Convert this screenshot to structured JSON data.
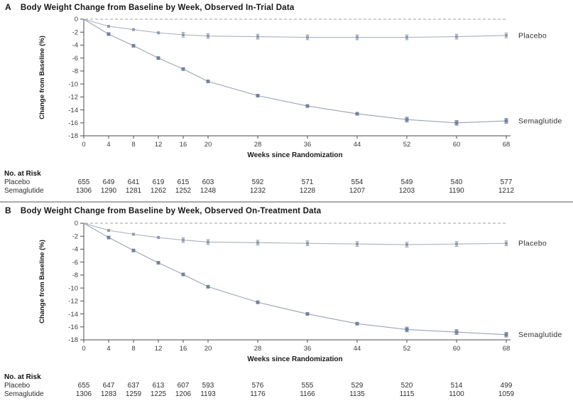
{
  "figure_label": "Body weight change figure, two panels",
  "colors": {
    "placebo_line": "#a8b0bd",
    "placebo_marker": "#8e9bae",
    "semaglutide_line": "#9aa4b6",
    "semaglutide_marker": "#73839f",
    "zero_line": "#9aa0a6",
    "axis": "#4d4d4d",
    "tick_text": "#3c3c3c",
    "divider": "#ababab"
  },
  "chart_data": [
    {
      "type": "line",
      "panel_letter": "A",
      "title": "Body Weight Change from Baseline by Week, Observed In-Trial Data",
      "xlabel": "Weeks since Randomization",
      "ylabel": "Change from Baseline (%)",
      "x": [
        0,
        4,
        8,
        12,
        16,
        20,
        28,
        36,
        44,
        52,
        60,
        68
      ],
      "xticks": [
        0,
        4,
        8,
        12,
        16,
        20,
        28,
        36,
        44,
        52,
        60,
        68
      ],
      "yticks": [
        0,
        -2,
        -4,
        -6,
        -8,
        -10,
        -12,
        -14,
        -16,
        -18
      ],
      "ylim": [
        -18,
        0
      ],
      "xlim": [
        0,
        68
      ],
      "zero_reference_line": true,
      "legend_position": "right-of-line-end",
      "series": [
        {
          "name": "Placebo",
          "values": [
            0,
            -1.1,
            -1.6,
            -2.1,
            -2.4,
            -2.6,
            -2.7,
            -2.8,
            -2.8,
            -2.8,
            -2.7,
            -2.5
          ],
          "error_bar_weeks": [
            16,
            20,
            28,
            36,
            44,
            52,
            60,
            68
          ]
        },
        {
          "name": "Semaglutide",
          "values": [
            0,
            -2.3,
            -4.1,
            -6.0,
            -7.7,
            -9.6,
            -11.8,
            -13.4,
            -14.6,
            -15.5,
            -16.0,
            -15.7
          ],
          "error_bar_weeks": [
            52,
            60,
            68
          ]
        }
      ],
      "risk_table": {
        "label": "No. at Risk",
        "rows": [
          {
            "name": "Placebo",
            "values": [
              655,
              649,
              641,
              619,
              615,
              603,
              592,
              571,
              554,
              549,
              540,
              577
            ]
          },
          {
            "name": "Semaglutide",
            "values": [
              1306,
              1290,
              1281,
              1262,
              1252,
              1248,
              1232,
              1228,
              1207,
              1203,
              1190,
              1212
            ]
          }
        ]
      }
    },
    {
      "type": "line",
      "panel_letter": "B",
      "title": "Body Weight Change from Baseline by Week, Observed On-Treatment Data",
      "xlabel": "Weeks since Randomization",
      "ylabel": "Change from Baseline (%)",
      "x": [
        0,
        4,
        8,
        12,
        16,
        20,
        28,
        36,
        44,
        52,
        60,
        68
      ],
      "xticks": [
        0,
        4,
        8,
        12,
        16,
        20,
        28,
        36,
        44,
        52,
        60,
        68
      ],
      "yticks": [
        0,
        -2,
        -4,
        -6,
        -8,
        -10,
        -12,
        -14,
        -16,
        -18
      ],
      "ylim": [
        -18,
        0
      ],
      "xlim": [
        0,
        68
      ],
      "zero_reference_line": true,
      "legend_position": "right-of-line-end",
      "series": [
        {
          "name": "Placebo",
          "values": [
            0,
            -1.1,
            -1.7,
            -2.2,
            -2.6,
            -2.9,
            -3.0,
            -3.1,
            -3.2,
            -3.3,
            -3.2,
            -3.1
          ],
          "error_bar_weeks": [
            16,
            20,
            28,
            36,
            44,
            52,
            60,
            68
          ]
        },
        {
          "name": "Semaglutide",
          "values": [
            0,
            -2.2,
            -4.2,
            -6.1,
            -7.9,
            -9.8,
            -12.2,
            -14.0,
            -15.5,
            -16.4,
            -16.8,
            -17.2
          ],
          "error_bar_weeks": [
            52,
            60,
            68
          ]
        }
      ],
      "risk_table": {
        "label": "No. at Risk",
        "rows": [
          {
            "name": "Placebo",
            "values": [
              655,
              647,
              637,
              613,
              607,
              593,
              576,
              555,
              529,
              520,
              514,
              499
            ]
          },
          {
            "name": "Semaglutide",
            "values": [
              1306,
              1283,
              1259,
              1225,
              1206,
              1193,
              1176,
              1166,
              1135,
              1115,
              1100,
              1059
            ]
          }
        ]
      }
    }
  ]
}
